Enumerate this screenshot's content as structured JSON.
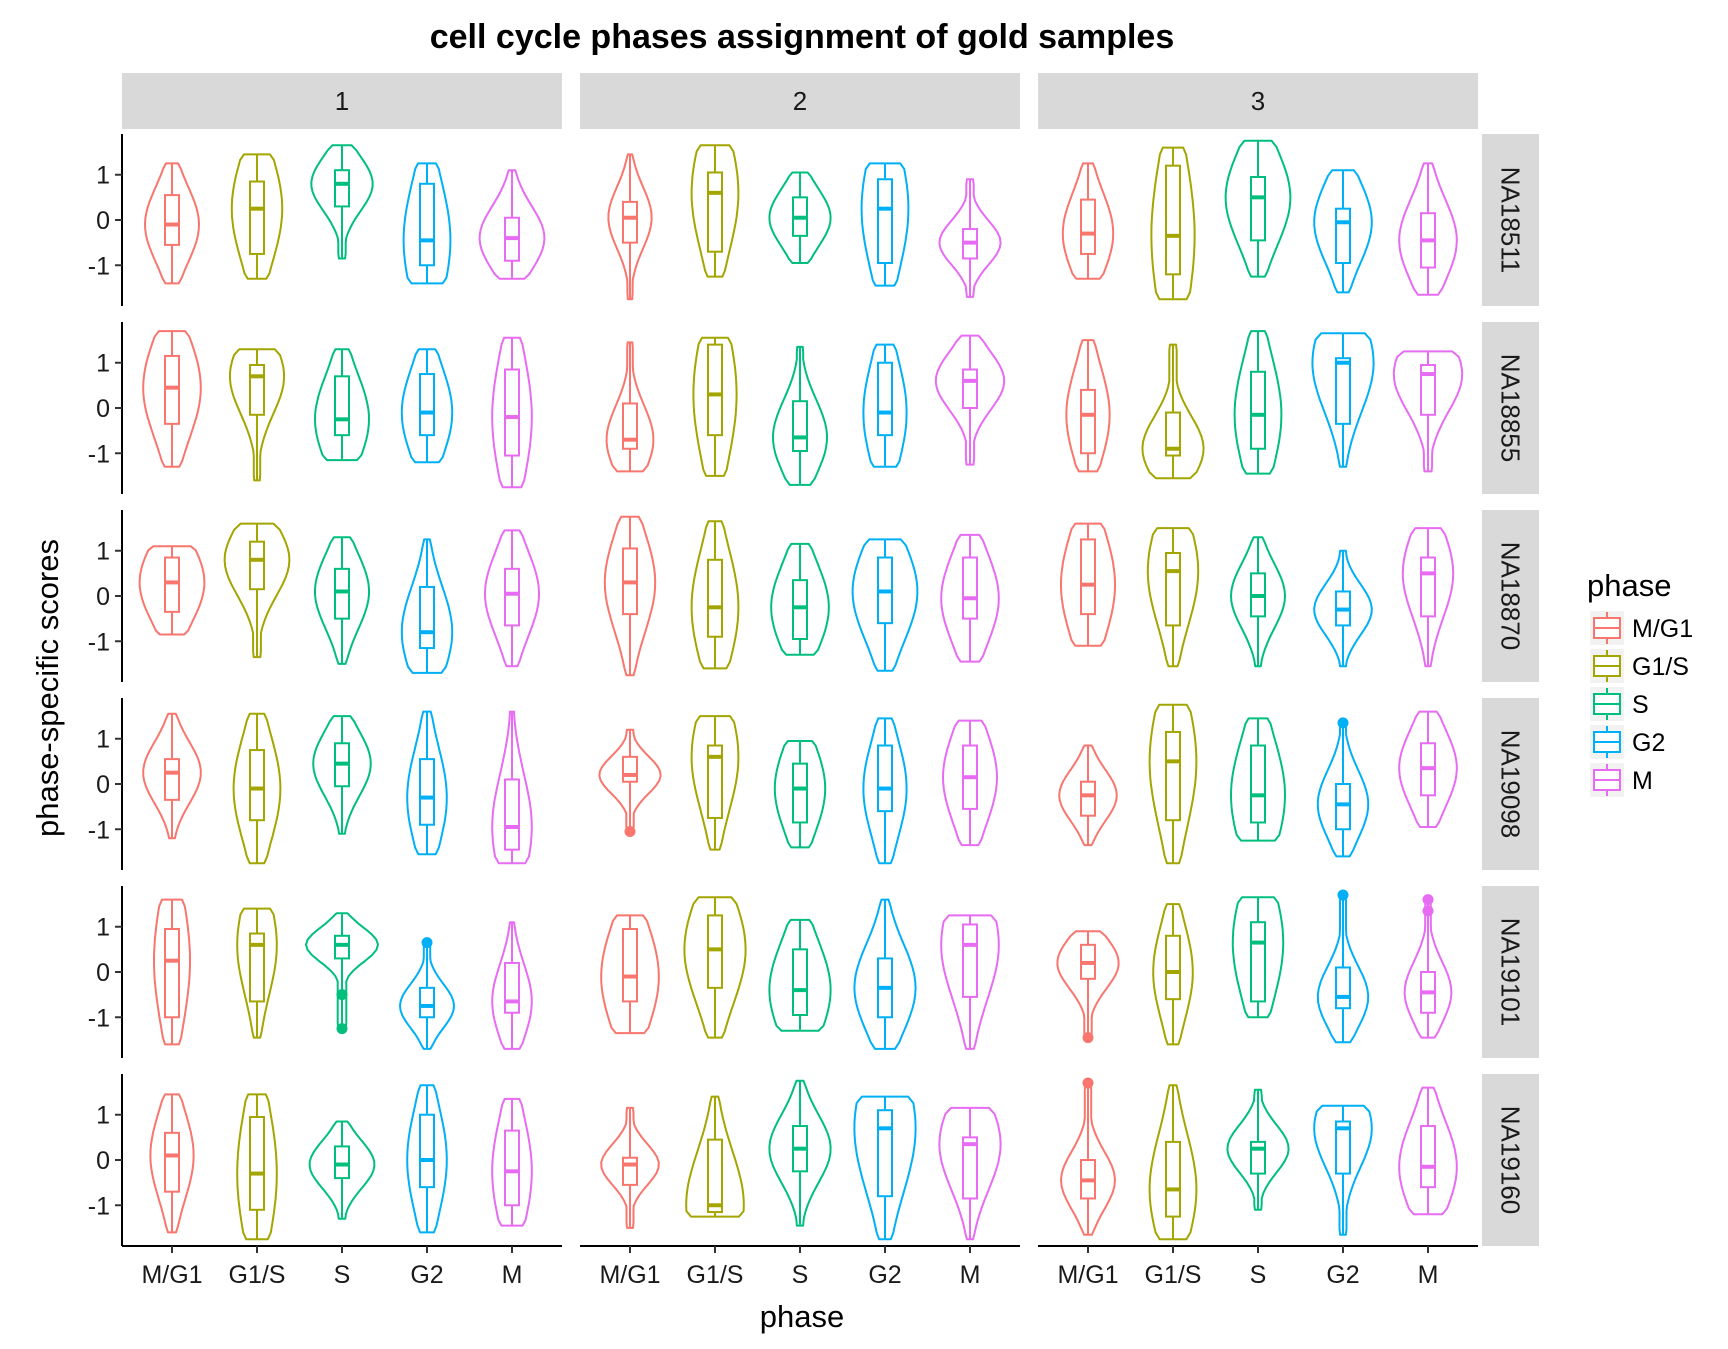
{
  "chart_data": {
    "type": "violin",
    "title": "cell cycle phases assignment of gold samples",
    "xlabel": "phase",
    "ylabel": "phase-specific scores",
    "ylim": [
      -1.9,
      1.9
    ],
    "yticks": [
      1,
      0,
      -1
    ],
    "categories": [
      "M/G1",
      "G1/S",
      "S",
      "G2",
      "M"
    ],
    "col_facets": [
      "1",
      "2",
      "3"
    ],
    "row_facets": [
      "NA18511",
      "NA18855",
      "NA18870",
      "NA19098",
      "NA19101",
      "NA19160"
    ],
    "legend": {
      "title": "phase",
      "position": "right",
      "entries": [
        "M/G1",
        "G1/S",
        "S",
        "G2",
        "M"
      ]
    },
    "colors": {
      "M/G1": "#F8766D",
      "G1/S": "#A3A500",
      "S": "#00BF7D",
      "G2": "#00B0F6",
      "M": "#E76BF3"
    },
    "cells": [
      [
        [
          [
            -1.4,
            1.25,
            -0.55,
            0.55,
            -0.1,
            0.75
          ],
          [
            -1.3,
            1.45,
            -0.75,
            0.85,
            0.25,
            0.7
          ],
          [
            -0.85,
            1.65,
            0.3,
            1.1,
            0.8,
            0.85
          ],
          [
            -1.4,
            1.25,
            -1.0,
            0.8,
            -0.45,
            0.65
          ],
          [
            -1.3,
            1.1,
            -0.9,
            0.05,
            -0.4,
            0.9
          ]
        ],
        [
          [
            -1.75,
            1.45,
            -0.5,
            0.4,
            0.05,
            0.6
          ],
          [
            -1.25,
            1.65,
            -0.7,
            1.05,
            0.6,
            0.65
          ],
          [
            -0.95,
            1.05,
            -0.35,
            0.5,
            0.05,
            0.85
          ],
          [
            -1.45,
            1.25,
            -0.95,
            0.9,
            0.25,
            0.65
          ],
          [
            -1.7,
            0.9,
            -0.85,
            -0.2,
            -0.5,
            0.85
          ]
        ],
        [
          [
            -1.3,
            1.25,
            -0.75,
            0.45,
            -0.3,
            0.7
          ],
          [
            -1.75,
            1.6,
            -1.2,
            1.2,
            -0.35,
            0.6
          ],
          [
            -1.25,
            1.75,
            -0.45,
            0.95,
            0.5,
            0.9
          ],
          [
            -1.6,
            1.1,
            -0.95,
            0.25,
            -0.05,
            0.8
          ],
          [
            -1.65,
            1.25,
            -1.05,
            0.15,
            -0.45,
            0.8
          ]
        ]
      ],
      [
        [
          [
            -1.3,
            1.7,
            -0.35,
            1.15,
            0.45,
            0.8
          ],
          [
            -1.6,
            1.3,
            -0.15,
            0.95,
            0.7,
            0.75
          ],
          [
            -1.15,
            1.3,
            -0.6,
            0.7,
            -0.25,
            0.75
          ],
          [
            -1.2,
            1.3,
            -0.6,
            0.75,
            -0.1,
            0.7
          ],
          [
            -1.75,
            1.55,
            -1.05,
            0.85,
            -0.2,
            0.55
          ]
        ],
        [
          [
            -1.4,
            1.45,
            -0.9,
            0.1,
            -0.7,
            0.65
          ],
          [
            -1.5,
            1.55,
            -0.6,
            1.4,
            0.3,
            0.6
          ],
          [
            -1.7,
            1.35,
            -0.95,
            0.15,
            -0.65,
            0.75
          ],
          [
            -1.3,
            1.4,
            -0.6,
            1.0,
            -0.1,
            0.6
          ],
          [
            -1.25,
            1.6,
            0.0,
            0.85,
            0.6,
            0.95
          ]
        ],
        [
          [
            -1.4,
            1.5,
            -1.0,
            0.4,
            -0.15,
            0.6
          ],
          [
            -1.55,
            1.4,
            -1.05,
            -0.1,
            -0.9,
            0.85
          ],
          [
            -1.45,
            1.7,
            -0.9,
            0.8,
            -0.15,
            0.65
          ],
          [
            -1.3,
            1.65,
            -0.35,
            1.1,
            1.0,
            0.85
          ],
          [
            -1.4,
            1.25,
            -0.15,
            0.95,
            0.75,
            0.95
          ]
        ]
      ],
      [
        [
          [
            -0.85,
            1.1,
            -0.35,
            0.85,
            0.3,
            0.9
          ],
          [
            -1.35,
            1.6,
            0.15,
            1.2,
            0.8,
            0.9
          ],
          [
            -1.5,
            1.3,
            -0.5,
            0.6,
            0.1,
            0.75
          ],
          [
            -1.7,
            1.25,
            -1.15,
            0.2,
            -0.8,
            0.7
          ],
          [
            -1.55,
            1.45,
            -0.65,
            0.6,
            0.05,
            0.75
          ]
        ],
        [
          [
            -1.75,
            1.75,
            -0.4,
            1.05,
            0.3,
            0.7
          ],
          [
            -1.6,
            1.65,
            -0.9,
            0.8,
            -0.25,
            0.65
          ],
          [
            -1.3,
            1.15,
            -0.95,
            0.35,
            -0.25,
            0.8
          ],
          [
            -1.65,
            1.25,
            -0.6,
            0.85,
            0.1,
            0.9
          ],
          [
            -1.45,
            1.35,
            -0.5,
            0.85,
            -0.05,
            0.8
          ]
        ],
        [
          [
            -1.1,
            1.6,
            -0.4,
            1.25,
            0.25,
            0.75
          ],
          [
            -1.55,
            1.5,
            -0.65,
            0.95,
            0.55,
            0.7
          ],
          [
            -1.55,
            1.3,
            -0.45,
            0.5,
            0.0,
            0.75
          ],
          [
            -1.55,
            1.0,
            -0.65,
            0.1,
            -0.3,
            0.8
          ],
          [
            -1.55,
            1.5,
            -0.45,
            0.85,
            0.5,
            0.7
          ]
        ]
      ],
      [
        [
          [
            -1.2,
            1.55,
            -0.35,
            0.55,
            0.25,
            0.8
          ],
          [
            -1.75,
            1.55,
            -0.8,
            0.75,
            -0.1,
            0.65
          ],
          [
            -1.1,
            1.5,
            -0.05,
            0.9,
            0.45,
            0.8
          ],
          [
            -1.55,
            1.6,
            -0.9,
            0.55,
            -0.3,
            0.55
          ],
          [
            -1.75,
            1.6,
            -1.45,
            0.1,
            -0.95,
            0.55
          ]
        ],
        [
          [
            -1.05,
            1.2,
            0.05,
            0.6,
            0.2,
            0.85
          ],
          [
            -1.45,
            1.5,
            -0.75,
            0.85,
            0.6,
            0.65
          ],
          [
            -1.4,
            0.95,
            -0.85,
            0.45,
            -0.1,
            0.7
          ],
          [
            -1.75,
            1.45,
            -0.6,
            0.85,
            -0.1,
            0.6
          ],
          [
            -1.35,
            1.4,
            -0.55,
            0.85,
            0.15,
            0.75
          ]
        ],
        [
          [
            -1.35,
            0.85,
            -0.7,
            0.05,
            -0.25,
            0.8
          ],
          [
            -1.75,
            1.75,
            -0.8,
            1.15,
            0.5,
            0.65
          ],
          [
            -1.25,
            1.45,
            -0.85,
            0.85,
            -0.25,
            0.75
          ],
          [
            -1.6,
            1.35,
            -1.0,
            0.0,
            -0.45,
            0.7
          ],
          [
            -0.95,
            1.6,
            -0.25,
            0.9,
            0.35,
            0.8
          ]
        ]
      ],
      [
        [
          [
            -1.6,
            1.6,
            -1.0,
            0.95,
            0.25,
            0.5
          ],
          [
            -1.45,
            1.4,
            -0.65,
            0.85,
            0.6,
            0.55
          ],
          [
            -1.25,
            1.3,
            0.3,
            0.8,
            0.6,
            1.0
          ],
          [
            -1.7,
            0.65,
            -1.0,
            -0.35,
            -0.75,
            0.75
          ],
          [
            -1.7,
            1.1,
            -0.9,
            0.2,
            -0.65,
            0.55
          ]
        ],
        [
          [
            -1.35,
            1.25,
            -0.65,
            0.95,
            -0.1,
            0.8
          ],
          [
            -1.45,
            1.65,
            -0.35,
            1.25,
            0.5,
            0.85
          ],
          [
            -1.3,
            1.15,
            -0.95,
            0.5,
            -0.4,
            0.85
          ],
          [
            -1.7,
            1.6,
            -1.0,
            0.3,
            -0.35,
            0.85
          ],
          [
            -1.7,
            1.25,
            -0.55,
            1.05,
            0.6,
            0.8
          ]
        ],
        [
          [
            -1.45,
            0.9,
            -0.15,
            0.6,
            0.2,
            0.85
          ],
          [
            -1.6,
            1.5,
            -0.6,
            0.8,
            0.0,
            0.55
          ],
          [
            -1.0,
            1.65,
            -0.65,
            1.1,
            0.65,
            0.7
          ],
          [
            -1.55,
            1.7,
            -0.8,
            0.1,
            -0.55,
            0.7
          ],
          [
            -1.45,
            1.6,
            -0.9,
            0.0,
            -0.45,
            0.65
          ]
        ]
      ],
      [
        [
          [
            -1.6,
            1.45,
            -0.7,
            0.6,
            0.1,
            0.6
          ],
          [
            -1.75,
            1.45,
            -1.1,
            0.95,
            -0.3,
            0.55
          ],
          [
            -1.3,
            0.85,
            -0.4,
            0.3,
            -0.1,
            0.9
          ],
          [
            -1.6,
            1.65,
            -0.6,
            1.0,
            0.0,
            0.55
          ],
          [
            -1.45,
            1.35,
            -1.0,
            0.65,
            -0.25,
            0.55
          ]
        ],
        [
          [
            -1.5,
            1.15,
            -0.55,
            0.05,
            -0.1,
            0.8
          ],
          [
            -1.25,
            1.4,
            -1.15,
            0.45,
            -1.0,
            0.8
          ],
          [
            -1.45,
            1.75,
            -0.25,
            0.75,
            0.25,
            0.85
          ],
          [
            -1.75,
            1.4,
            -0.8,
            1.1,
            0.7,
            0.85
          ],
          [
            -1.75,
            1.15,
            -0.85,
            0.5,
            0.35,
            0.85
          ]
        ],
        [
          [
            -1.65,
            1.7,
            -0.85,
            0.0,
            -0.45,
            0.75
          ],
          [
            -1.75,
            1.65,
            -1.25,
            0.4,
            -0.65,
            0.65
          ],
          [
            -1.1,
            1.55,
            -0.3,
            0.4,
            0.25,
            0.85
          ],
          [
            -1.65,
            1.2,
            -0.3,
            0.85,
            0.7,
            0.8
          ],
          [
            -1.2,
            1.6,
            -0.6,
            0.75,
            -0.15,
            0.8
          ]
        ]
      ]
    ],
    "outliers": [
      {
        "row": 3,
        "col": 1,
        "phase": "M/G1",
        "values": [
          -1.05
        ]
      },
      {
        "row": 3,
        "col": 2,
        "phase": "G2",
        "values": [
          1.35
        ]
      },
      {
        "row": 4,
        "col": 0,
        "phase": "S",
        "values": [
          -0.5,
          -1.25
        ]
      },
      {
        "row": 4,
        "col": 0,
        "phase": "G2",
        "values": [
          0.65
        ]
      },
      {
        "row": 4,
        "col": 2,
        "phase": "M/G1",
        "values": [
          -1.45
        ]
      },
      {
        "row": 4,
        "col": 2,
        "phase": "G2",
        "values": [
          1.7
        ]
      },
      {
        "row": 4,
        "col": 2,
        "phase": "M",
        "values": [
          1.6,
          1.35
        ]
      },
      {
        "row": 5,
        "col": 2,
        "phase": "M/G1",
        "values": [
          1.7
        ]
      }
    ]
  }
}
